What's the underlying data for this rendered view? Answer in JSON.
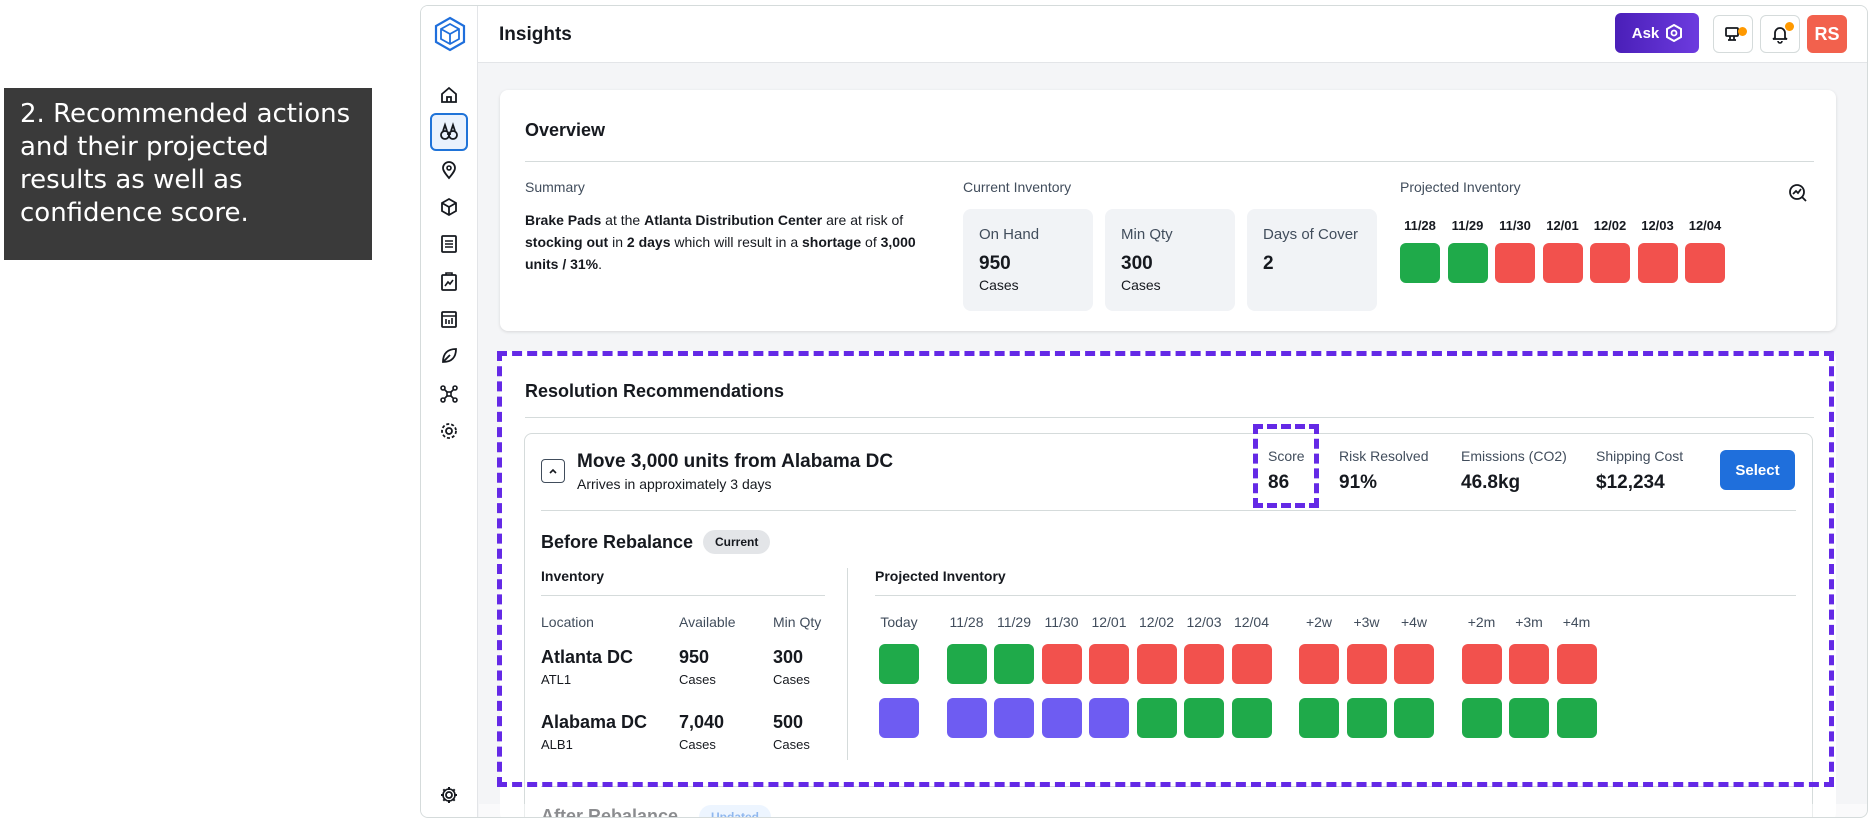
{
  "callout": {
    "text": "2. Recommended actions and their projected results as well as confidence score."
  },
  "header": {
    "title": "Insights",
    "ask_label": "Ask",
    "avatar_initials": "RS"
  },
  "sidebar": {
    "items": [
      {
        "name": "home",
        "icon": "home-icon"
      },
      {
        "name": "insights",
        "icon": "binoculars-icon",
        "active": true
      },
      {
        "name": "map",
        "icon": "location-pin-icon"
      },
      {
        "name": "inventory",
        "icon": "box-icon"
      },
      {
        "name": "orders",
        "icon": "list-icon"
      },
      {
        "name": "planning",
        "icon": "chart-clipboard-icon"
      },
      {
        "name": "calendar",
        "icon": "calendar-icon"
      },
      {
        "name": "sustainability",
        "icon": "leaf-icon"
      },
      {
        "name": "network",
        "icon": "network-icon"
      },
      {
        "name": "analytics",
        "icon": "target-icon"
      }
    ],
    "settings_icon": "gear-icon"
  },
  "overview": {
    "title": "Overview",
    "summary_label": "Summary",
    "summary": {
      "item": "Brake Pads",
      "t1": " at the ",
      "location": "Atlanta Distribution Center",
      "t2": " are at risk of ",
      "risk": "stocking out",
      "t3": " in ",
      "days": "2 days",
      "t4": " which will result in a ",
      "shortage": "shortage",
      "t5": " of ",
      "amount": "3,000 units / 31%",
      "t6": "."
    },
    "current_inventory_label": "Current Inventory",
    "stats": [
      {
        "label": "On Hand",
        "value": "950",
        "unit": "Cases"
      },
      {
        "label": "Min Qty",
        "value": "300",
        "unit": "Cases"
      },
      {
        "label": "Days of Cover",
        "value": "2",
        "unit": ""
      }
    ],
    "projected_label": "Projected Inventory",
    "projected": [
      {
        "date": "11/28",
        "status": "ok"
      },
      {
        "date": "11/29",
        "status": "ok"
      },
      {
        "date": "11/30",
        "status": "risk"
      },
      {
        "date": "12/01",
        "status": "risk"
      },
      {
        "date": "12/02",
        "status": "risk"
      },
      {
        "date": "12/03",
        "status": "risk"
      },
      {
        "date": "12/04",
        "status": "risk"
      }
    ],
    "status_colors": {
      "ok": "#1faa4a",
      "risk": "#f2514d",
      "transfer": "#6e5cf2"
    }
  },
  "recommendations": {
    "title": "Resolution Recommendations",
    "option": {
      "title": "Move 3,000 units from Alabama DC",
      "subtitle": "Arrives in approximately 3 days",
      "metrics": [
        {
          "label": "Score",
          "value": "86"
        },
        {
          "label": "Risk Resolved",
          "value": "91%"
        },
        {
          "label": "Emissions (CO2)",
          "value": "46.8kg"
        },
        {
          "label": "Shipping Cost",
          "value": "$12,234"
        }
      ],
      "select_label": "Select",
      "before": {
        "title": "Before Rebalance",
        "badge": "Current",
        "inventory_label": "Inventory",
        "columns": [
          "Location",
          "Available",
          "Min Qty"
        ],
        "projected_label": "Projected Inventory",
        "dates": [
          "Today",
          "11/28",
          "11/29",
          "11/30",
          "12/01",
          "12/02",
          "12/03",
          "12/04",
          "+2w",
          "+3w",
          "+4w",
          "+2m",
          "+3m",
          "+4m"
        ],
        "rows": [
          {
            "name": "Atlanta DC",
            "code": "ATL1",
            "available": "950",
            "available_unit": "Cases",
            "min": "300",
            "min_unit": "Cases",
            "statuses": [
              "ok",
              "ok",
              "ok",
              "risk",
              "risk",
              "risk",
              "risk",
              "risk",
              "risk",
              "risk",
              "risk",
              "risk",
              "risk",
              "risk"
            ]
          },
          {
            "name": "Alabama DC",
            "code": "ALB1",
            "available": "7,040",
            "available_unit": "Cases",
            "min": "500",
            "min_unit": "Cases",
            "statuses": [
              "transfer",
              "transfer",
              "transfer",
              "transfer",
              "transfer",
              "ok",
              "ok",
              "ok",
              "ok",
              "ok",
              "ok",
              "ok",
              "ok",
              "ok"
            ]
          }
        ]
      },
      "after": {
        "title": "After Rebalance",
        "badge": "Updated"
      }
    }
  }
}
